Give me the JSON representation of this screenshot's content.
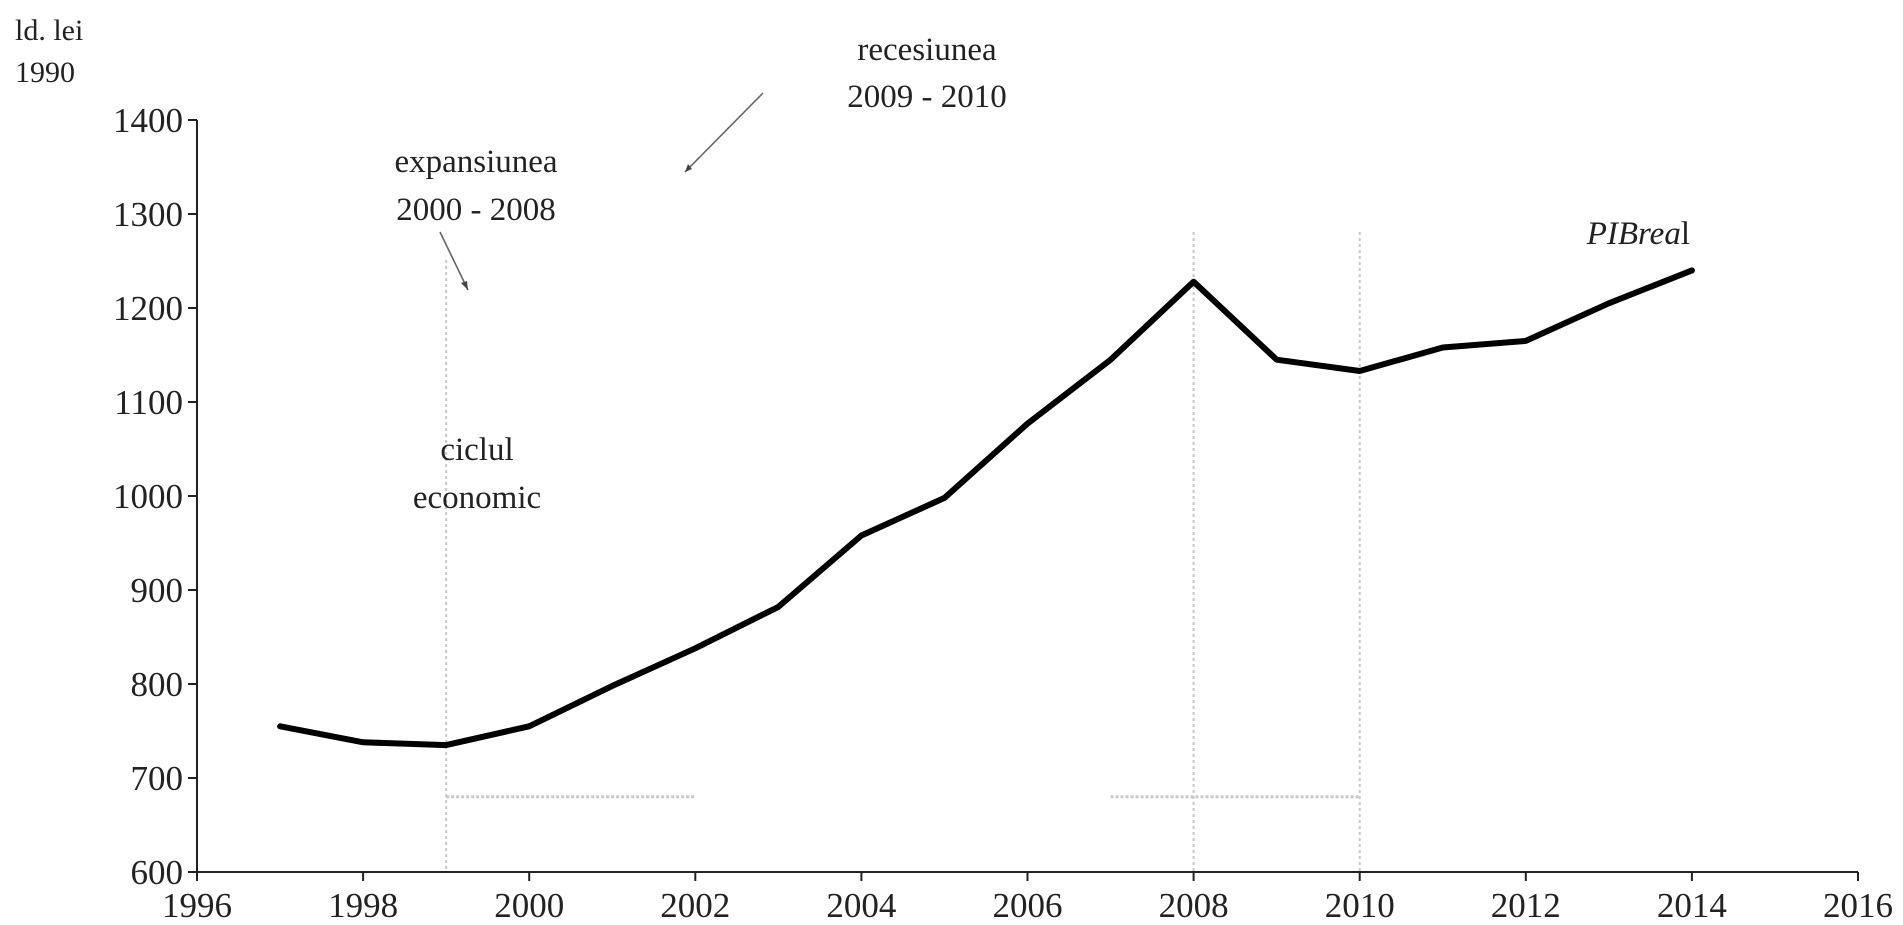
{
  "chart_data": {
    "type": "line",
    "title": "",
    "xlabel": "",
    "ylabel": "ld. lei",
    "ylabel_line2": "1990",
    "xlim": [
      1996,
      2016
    ],
    "ylim": [
      600,
      1400
    ],
    "x_ticks": [
      1996,
      1998,
      2000,
      2002,
      2004,
      2006,
      2008,
      2010,
      2012,
      2014,
      2016
    ],
    "y_ticks": [
      600,
      700,
      800,
      900,
      1000,
      1100,
      1200,
      1300,
      1400
    ],
    "grid": false,
    "series": [
      {
        "name": "PIBreal",
        "x": [
          1997,
          1998,
          1999,
          2000,
          2001,
          2002,
          2003,
          2004,
          2005,
          2006,
          2007,
          2008,
          2009,
          2010,
          2011,
          2012,
          2013,
          2014
        ],
        "y": [
          755,
          738,
          735,
          755,
          798,
          838,
          882,
          958,
          998,
          1077,
          1145,
          1228,
          1145,
          1133,
          1158,
          1165,
          1205,
          1240
        ]
      }
    ],
    "series_label": {
      "prefix": "PIBrea",
      "suffix": "l"
    },
    "reference_lines_x": [
      1999,
      2008,
      2010
    ],
    "reference_segments": [
      {
        "x_from": 1999,
        "x_to": 2002,
        "y": 680
      },
      {
        "x_from": 2007,
        "x_to": 2010,
        "y": 680
      }
    ],
    "annotations": [
      {
        "id": "expansion",
        "lines": [
          "expansiunea",
          "2000 - 2008"
        ]
      },
      {
        "id": "recession",
        "lines": [
          "recesiunea",
          "2009 - 2010"
        ]
      },
      {
        "id": "cycle",
        "lines": [
          "ciclul",
          "economic"
        ]
      }
    ]
  }
}
